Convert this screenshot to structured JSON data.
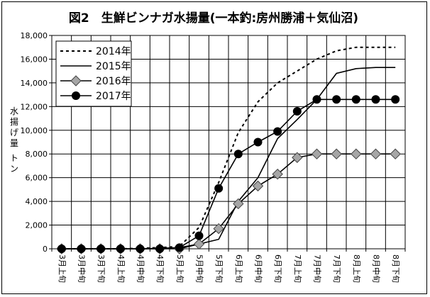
{
  "chart_data": {
    "type": "line",
    "title": "図2　生鮮ビンナガ水揚量(一本釣:房州勝浦＋気仙沼)",
    "ylabel_chars": [
      "水",
      "揚",
      "げ",
      "量",
      "",
      "ト",
      "ン"
    ],
    "categories": [
      "3月上旬",
      "3月中旬",
      "3月下旬",
      "4月上旬",
      "4月中旬",
      "4月下旬",
      "5月上旬",
      "5月中旬",
      "5月下旬",
      "6月上旬",
      "6月中旬",
      "6月下旬",
      "7月上旬",
      "7月中旬",
      "7月下旬",
      "8月上旬",
      "8月中旬",
      "8月下旬"
    ],
    "ylim": [
      0,
      18000
    ],
    "yticks": [
      0,
      2000,
      4000,
      6000,
      8000,
      10000,
      12000,
      14000,
      16000,
      18000
    ],
    "ytick_labels": [
      "0",
      "2,000",
      "4,000",
      "6,000",
      "8,000",
      "10,000",
      "12,000",
      "14,000",
      "16,000",
      "18,000"
    ],
    "grid": true,
    "legend_position": "top-left",
    "series": [
      {
        "name": "2014年",
        "style": "dotted",
        "marker": "none",
        "color": "#000000",
        "values": [
          0,
          0,
          0,
          0,
          50,
          100,
          200,
          1800,
          5600,
          9800,
          12400,
          14000,
          15000,
          16000,
          16700,
          17000,
          17000,
          17000
        ]
      },
      {
        "name": "2015年",
        "style": "solid",
        "marker": "none",
        "color": "#000000",
        "values": [
          0,
          0,
          0,
          0,
          0,
          50,
          100,
          400,
          800,
          4000,
          6000,
          9300,
          10900,
          12600,
          14800,
          15200,
          15300,
          15300
        ]
      },
      {
        "name": "2016年",
        "style": "solid",
        "marker": "diamond",
        "color": "#000000",
        "marker_fill": "#a6a6a6",
        "values": [
          0,
          0,
          0,
          0,
          0,
          0,
          0,
          400,
          1700,
          3800,
          5300,
          6300,
          7700,
          8000,
          8000,
          8000,
          8000,
          8000
        ]
      },
      {
        "name": "2017年",
        "style": "solid",
        "marker": "circle",
        "color": "#000000",
        "marker_fill": "#000000",
        "values": [
          0,
          0,
          0,
          0,
          0,
          0,
          100,
          1100,
          5100,
          8000,
          9000,
          9900,
          11600,
          12600,
          12600,
          12600,
          12600,
          12600
        ]
      }
    ]
  }
}
